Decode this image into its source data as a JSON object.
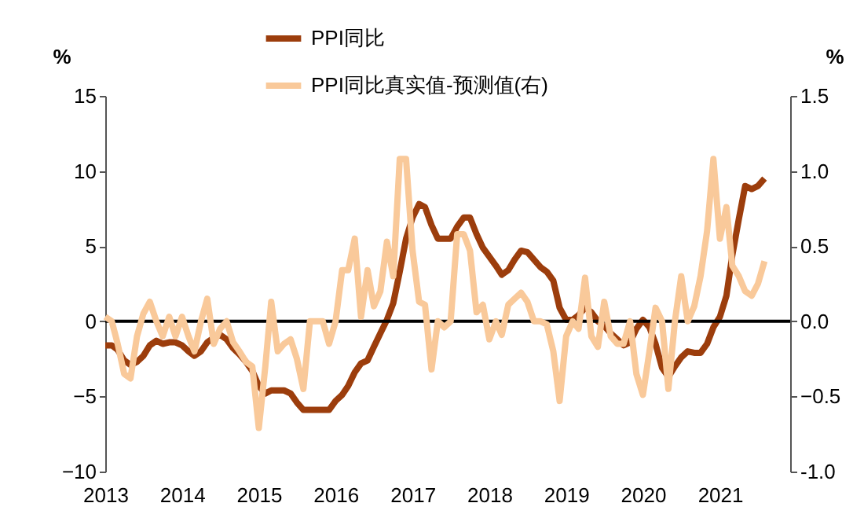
{
  "chart_data": {
    "type": "line",
    "x": [
      "2013-01",
      "2013-02",
      "2013-03",
      "2013-04",
      "2013-05",
      "2013-06",
      "2013-07",
      "2013-08",
      "2013-09",
      "2013-10",
      "2013-11",
      "2013-12",
      "2014-01",
      "2014-02",
      "2014-03",
      "2014-04",
      "2014-05",
      "2014-06",
      "2014-07",
      "2014-08",
      "2014-09",
      "2014-10",
      "2014-11",
      "2014-12",
      "2015-01",
      "2015-02",
      "2015-03",
      "2015-04",
      "2015-05",
      "2015-06",
      "2015-07",
      "2015-08",
      "2015-09",
      "2015-10",
      "2015-11",
      "2015-12",
      "2016-01",
      "2016-02",
      "2016-03",
      "2016-04",
      "2016-05",
      "2016-06",
      "2016-07",
      "2016-08",
      "2016-09",
      "2016-10",
      "2016-11",
      "2016-12",
      "2017-01",
      "2017-02",
      "2017-03",
      "2017-04",
      "2017-05",
      "2017-06",
      "2017-07",
      "2017-08",
      "2017-09",
      "2017-10",
      "2017-11",
      "2017-12",
      "2018-01",
      "2018-02",
      "2018-03",
      "2018-04",
      "2018-05",
      "2018-06",
      "2018-07",
      "2018-08",
      "2018-09",
      "2018-10",
      "2018-11",
      "2018-12",
      "2019-01",
      "2019-02",
      "2019-03",
      "2019-04",
      "2019-05",
      "2019-06",
      "2019-07",
      "2019-08",
      "2019-09",
      "2019-10",
      "2019-11",
      "2019-12",
      "2020-01",
      "2020-02",
      "2020-03",
      "2020-04",
      "2020-05",
      "2020-06",
      "2020-07",
      "2020-08",
      "2020-09",
      "2020-10",
      "2020-11",
      "2020-12",
      "2021-01",
      "2021-02",
      "2021-03",
      "2021-04",
      "2021-05",
      "2021-06",
      "2021-07",
      "2021-08"
    ],
    "series": [
      {
        "name": "PPI同比",
        "color": "#9c3d0c",
        "axis": "y",
        "values": [
          -1.6,
          -1.6,
          -1.9,
          -2.6,
          -2.9,
          -2.7,
          -2.3,
          -1.6,
          -1.3,
          -1.5,
          -1.4,
          -1.4,
          -1.6,
          -2.0,
          -2.3,
          -2.0,
          -1.4,
          -1.1,
          -0.9,
          -1.2,
          -1.8,
          -2.2,
          -2.7,
          -3.3,
          -4.3,
          -4.8,
          -4.6,
          -4.6,
          -4.6,
          -4.8,
          -5.4,
          -5.9,
          -5.9,
          -5.9,
          -5.9,
          -5.9,
          -5.3,
          -4.9,
          -4.3,
          -3.4,
          -2.8,
          -2.6,
          -1.7,
          -0.8,
          0.1,
          1.2,
          3.3,
          5.5,
          6.9,
          7.8,
          7.6,
          6.4,
          5.5,
          5.5,
          5.5,
          6.3,
          6.9,
          6.9,
          5.8,
          4.9,
          4.3,
          3.7,
          3.1,
          3.4,
          4.1,
          4.7,
          4.6,
          4.1,
          3.6,
          3.3,
          2.7,
          0.9,
          0.1,
          0.1,
          0.4,
          0.9,
          0.6,
          0.0,
          -0.3,
          -0.8,
          -1.2,
          -1.6,
          -1.4,
          -0.5,
          0.1,
          -0.4,
          -1.5,
          -3.1,
          -3.7,
          -3.0,
          -2.4,
          -2.0,
          -2.1,
          -2.1,
          -1.5,
          -0.4,
          0.3,
          1.7,
          4.4,
          6.8,
          9.0,
          8.8,
          9.0,
          9.5
        ]
      },
      {
        "name": "PPI同比真实值-预测值(右)",
        "color": "#f9c99a",
        "axis": "y2",
        "values": [
          0.03,
          0.0,
          -0.15,
          -0.35,
          -0.38,
          -0.1,
          0.05,
          0.13,
          0.0,
          -0.1,
          0.03,
          -0.1,
          0.03,
          -0.1,
          -0.2,
          0.0,
          0.15,
          -0.15,
          -0.05,
          0.0,
          -0.14,
          -0.2,
          -0.27,
          -0.3,
          -0.71,
          -0.3,
          0.13,
          -0.2,
          -0.15,
          -0.12,
          -0.25,
          -0.45,
          0.0,
          0.0,
          0.0,
          -0.15,
          0.0,
          0.34,
          0.34,
          0.55,
          0.03,
          0.34,
          0.1,
          0.2,
          0.53,
          0.3,
          1.08,
          1.08,
          0.47,
          0.13,
          0.11,
          -0.32,
          0.0,
          -0.04,
          0.0,
          0.58,
          0.58,
          0.47,
          0.06,
          0.11,
          -0.12,
          0.0,
          -0.09,
          0.11,
          0.15,
          0.19,
          0.13,
          0.0,
          0.0,
          -0.02,
          -0.2,
          -0.53,
          -0.1,
          0.0,
          -0.05,
          0.29,
          -0.1,
          -0.17,
          0.13,
          -0.1,
          -0.15,
          -0.15,
          0.0,
          -0.35,
          -0.49,
          -0.2,
          0.09,
          0.0,
          -0.45,
          0.0,
          0.3,
          0.0,
          0.1,
          0.3,
          0.6,
          1.08,
          0.55,
          0.76,
          0.37,
          0.3,
          0.2,
          0.17,
          0.25,
          0.4
        ]
      }
    ],
    "ylabel": "%",
    "y2label": "%",
    "xlim": [
      "2013-01",
      "2021-12"
    ],
    "xticks": [
      "2013",
      "2014",
      "2015",
      "2016",
      "2017",
      "2018",
      "2019",
      "2020",
      "2021"
    ],
    "ylim": [
      -10,
      15
    ],
    "yticks": [
      -10,
      -5,
      0,
      5,
      10,
      15
    ],
    "y2lim": [
      -1.0,
      1.5
    ],
    "y2ticks": [
      {
        "value": -1,
        "label": "-1.0"
      },
      -0.5,
      {
        "value": 0,
        "label": "0.0"
      },
      0.5,
      {
        "value": 1,
        "label": "1.0"
      },
      1.5
    ],
    "ref_lines": [
      {
        "axis": "y",
        "value": 0,
        "color": "#000000"
      }
    ],
    "legend": "top",
    "grid": false,
    "line_style": "solid",
    "marker": "none"
  }
}
